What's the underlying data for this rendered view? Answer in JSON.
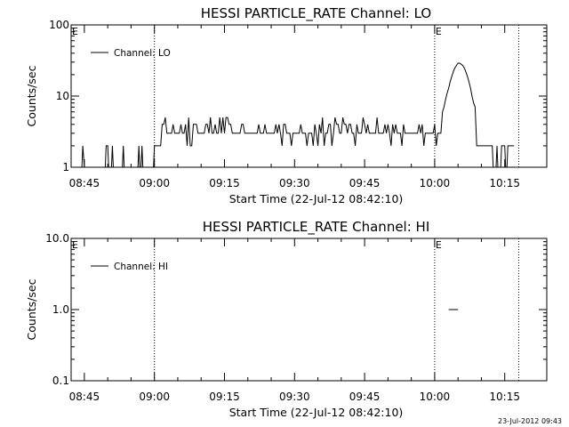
{
  "chart_data": [
    {
      "type": "line",
      "title": "HESSI PARTICLE_RATE Channel: LO",
      "xlabel": "Start Time (22-Jul-12 08:42:10)",
      "ylabel": "Counts/sec",
      "y_scale": "log",
      "ylim": [
        1,
        100
      ],
      "y_ticks": [
        {
          "value": 1,
          "label": "1"
        },
        {
          "value": 10,
          "label": "10"
        },
        {
          "value": 100,
          "label": "100"
        }
      ],
      "xlim": [
        "08:42:10",
        "10:24:00"
      ],
      "x_ticks": [
        "08:45",
        "09:00",
        "09:15",
        "09:30",
        "09:45",
        "10:00",
        "10:15"
      ],
      "vlines": [
        "09:00",
        "10:00",
        "10:18"
      ],
      "flags": [
        {
          "label": "E",
          "x": "08:42"
        },
        {
          "label": "E",
          "x": "10:00"
        }
      ],
      "legend": {
        "label": "Channel: LO",
        "placement": "top-left"
      },
      "series": [
        {
          "name": "Channel: LO",
          "x": [],
          "values": []
        }
      ]
    },
    {
      "type": "line",
      "title": "HESSI PARTICLE_RATE Channel: HI",
      "xlabel": "Start Time (22-Jul-12 08:42:10)",
      "ylabel": "Counts/sec",
      "y_scale": "log",
      "ylim": [
        0.1,
        10
      ],
      "y_ticks": [
        {
          "value": 0.1,
          "label": "0.1"
        },
        {
          "value": 1,
          "label": "1.0"
        },
        {
          "value": 10,
          "label": "10.0"
        }
      ],
      "xlim": [
        "08:42:10",
        "10:24:00"
      ],
      "x_ticks": [
        "08:45",
        "09:00",
        "09:15",
        "09:30",
        "09:45",
        "10:00",
        "10:15"
      ],
      "vlines": [
        "09:00",
        "10:00",
        "10:18"
      ],
      "flags": [
        {
          "label": "E",
          "x": "08:42"
        },
        {
          "label": "E",
          "x": "10:00"
        }
      ],
      "legend": {
        "label": "Channel: HI",
        "placement": "top-left"
      },
      "series": [
        {
          "name": "Channel: HI",
          "x": [
            "10:03",
            "10:05"
          ],
          "values": [
            1,
            1
          ]
        }
      ]
    }
  ],
  "timestamp": "23-Jul-2012 09:43"
}
